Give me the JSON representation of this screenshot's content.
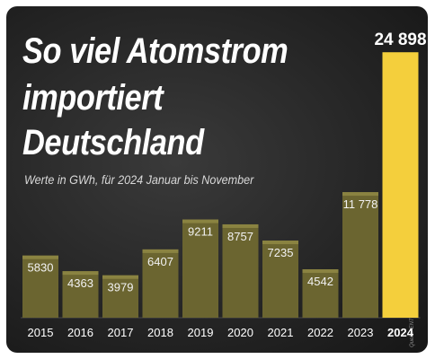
{
  "chart_data": {
    "type": "bar",
    "title_lines": [
      "So viel Atomstrom",
      "importiert",
      "Deutschland"
    ],
    "subtitle": "Werte in GWh, für 2024 Januar bis November",
    "source": "Quelle: ENTSO-E / Bundesnetzagentur – Stand 11.12.2024",
    "categories": [
      "2015",
      "2016",
      "2017",
      "2018",
      "2019",
      "2020",
      "2021",
      "2022",
      "2023",
      "2024"
    ],
    "values": [
      5830,
      4363,
      3979,
      6407,
      9211,
      8757,
      7235,
      4542,
      11778,
      24898
    ],
    "value_labels": [
      "5830",
      "4363",
      "3979",
      "6407",
      "9211",
      "8757",
      "7235",
      "4542",
      "11 778",
      "24 898"
    ],
    "highlight_category": "2024",
    "ylim": [
      0,
      25000
    ],
    "colors": {
      "bar": "#6b6530",
      "bar_top": "#8a8341",
      "highlight": "#f4cf3c",
      "background": "#2b2b2b"
    },
    "grid": false,
    "legend": "none"
  }
}
